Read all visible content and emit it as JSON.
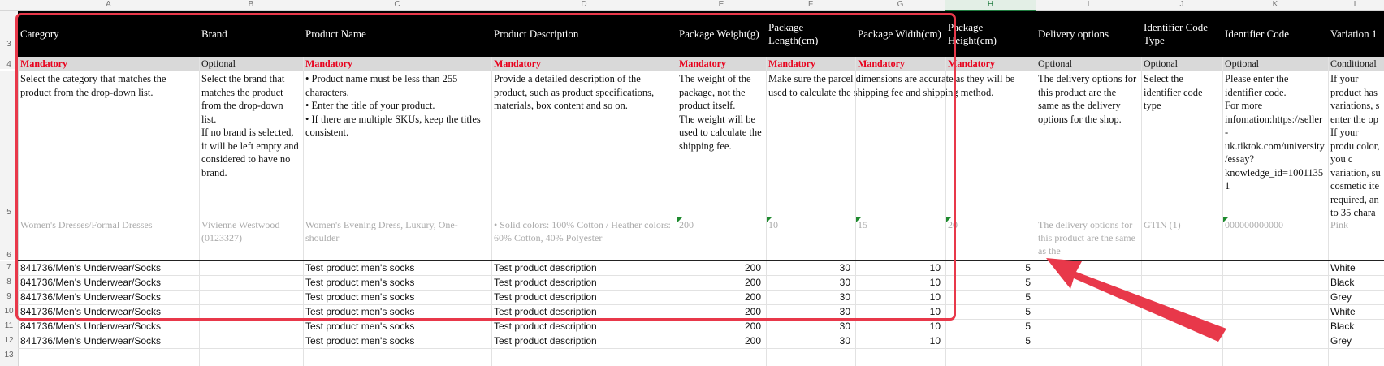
{
  "sheet": {
    "column_letters": [
      "A",
      "B",
      "C",
      "D",
      "E",
      "F",
      "G",
      "H",
      "I",
      "J",
      "K",
      "L"
    ],
    "row_numbers": [
      "3",
      "4",
      "5",
      "6",
      "7",
      "8",
      "9",
      "10",
      "11",
      "12",
      "13"
    ],
    "selected_column": "H"
  },
  "headers": [
    "Category",
    "Brand",
    "Product Name",
    "Product Description",
    "Package Weight(g)",
    "Package Length(cm)",
    "Package Width(cm)",
    "Package Height(cm)",
    "Delivery options",
    "Identifier Code Type",
    "Identifier Code",
    "Variation 1"
  ],
  "requirements": [
    "Mandatory",
    "Optional",
    "Mandatory",
    "Mandatory",
    "Mandatory",
    "Mandatory",
    "Mandatory",
    "Mandatory",
    "Optional",
    "Optional",
    "Optional",
    "Conditional"
  ],
  "descriptions": {
    "category": "Select the category that matches the product from the drop-down list.",
    "brand": "Select the brand that matches the product from the drop-down list.\nIf no brand is selected, it will be left empty and considered to have no brand.",
    "product_name": "• Product name must be less than 255 characters.\n• Enter the title of your product.\n• If there are multiple SKUs, keep the titles consistent.",
    "product_description": "Provide a detailed description of the product, such as product specifications, materials, box content and so on.",
    "package_weight": "The weight of the package, not the product itself.\nThe weight will be used to calculate the shipping fee.",
    "package_dimensions": "Make sure the parcel dimensions are accurate as they will be used to calculate the shipping fee and shipping method.",
    "delivery_options": "The delivery options for this product are the same as the delivery options for the shop.",
    "identifier_code_type": "Select the identifier code type",
    "identifier_code": "Please enter the identifier code.\nFor more infomation:https://seller-uk.tiktok.com/university/essay?knowledge_id=10011351",
    "variation_1": "If your product has variations, s enter the op\nIf your produ color, you c variation, su cosmetic ite required, an to 35 chara"
  },
  "examples": [
    "Women's Dresses/Formal Dresses",
    "Vivienne Westwood (0123327)",
    "Women's Evening Dress, Luxury, One-shoulder",
    "• Solid colors: 100% Cotton / Heather colors: 60% Cotton, 40% Polyester",
    "200",
    "10",
    "15",
    "20",
    "The delivery options for this product are the same as the",
    "GTIN (1)",
    "000000000000",
    "Pink"
  ],
  "rows": [
    {
      "category": "841736/Men's Underwear/Socks",
      "brand": "",
      "product_name": "Test product men's socks",
      "description": "Test product description",
      "weight": "200",
      "length": "30",
      "width": "10",
      "height": "5",
      "delivery": "",
      "id_type": "",
      "id_code": "",
      "variation": "White"
    },
    {
      "category": "841736/Men's Underwear/Socks",
      "brand": "",
      "product_name": "Test product men's socks",
      "description": "Test product description",
      "weight": "200",
      "length": "30",
      "width": "10",
      "height": "5",
      "delivery": "",
      "id_type": "",
      "id_code": "",
      "variation": "Black"
    },
    {
      "category": "841736/Men's Underwear/Socks",
      "brand": "",
      "product_name": "Test product men's socks",
      "description": "Test product description",
      "weight": "200",
      "length": "30",
      "width": "10",
      "height": "5",
      "delivery": "",
      "id_type": "",
      "id_code": "",
      "variation": "Grey"
    },
    {
      "category": "841736/Men's Underwear/Socks",
      "brand": "",
      "product_name": "Test product men's socks",
      "description": "Test product description",
      "weight": "200",
      "length": "30",
      "width": "10",
      "height": "5",
      "delivery": "",
      "id_type": "",
      "id_code": "",
      "variation": "White"
    },
    {
      "category": "841736/Men's Underwear/Socks",
      "brand": "",
      "product_name": "Test product men's socks",
      "description": "Test product description",
      "weight": "200",
      "length": "30",
      "width": "10",
      "height": "5",
      "delivery": "",
      "id_type": "",
      "id_code": "",
      "variation": "Black"
    },
    {
      "category": "841736/Men's Underwear/Socks",
      "brand": "",
      "product_name": "Test product men's socks",
      "description": "Test product description",
      "weight": "200",
      "length": "30",
      "width": "10",
      "height": "5",
      "delivery": "",
      "id_type": "",
      "id_code": "",
      "variation": "Grey"
    }
  ],
  "colors": {
    "header_bg": "#000000",
    "mandatory": "#e8001c",
    "highlight": "#e8384a",
    "arrow": "#e8384a"
  }
}
